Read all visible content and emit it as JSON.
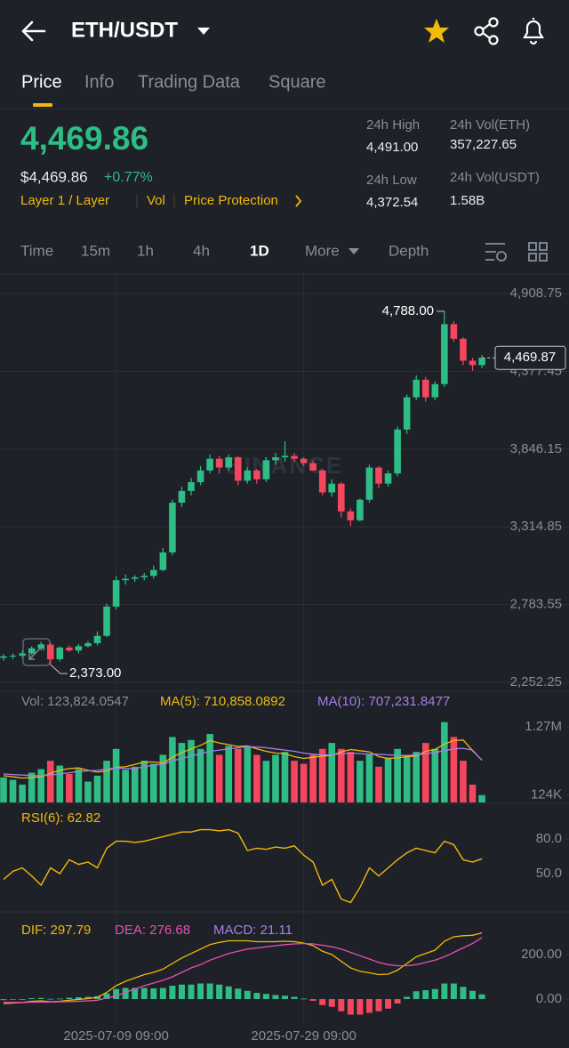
{
  "header": {
    "title": "ETH/USDT"
  },
  "tabs": [
    "Price",
    "Info",
    "Trading Data",
    "Square"
  ],
  "ticker": {
    "price": "4,469.86",
    "usd_price": "$4,469.86",
    "change": "+0.77%",
    "tags": [
      "Layer 1 / Layer",
      "Vol",
      "Price Protection"
    ],
    "stats": [
      {
        "label": "24h High",
        "value": "4,491.00"
      },
      {
        "label": "24h Vol(ETH)",
        "value": "357,227.65"
      },
      {
        "label": "24h Low",
        "value": "4,372.54"
      },
      {
        "label": "24h Vol(USDT)",
        "value": "1.58B"
      }
    ]
  },
  "intervals": [
    "Time",
    "15m",
    "1h",
    "4h",
    "1D",
    "More",
    "Depth"
  ],
  "watermark": "BINANCE",
  "chart_data": [
    {
      "type": "candlestick",
      "up_color": "#2ebd85",
      "down_color": "#f6465d",
      "categories": [
        null,
        null,
        null,
        null,
        null,
        null,
        null,
        null,
        null,
        null,
        null,
        null,
        "2025-07-09 09:00",
        null,
        null,
        null,
        null,
        null,
        null,
        null,
        null,
        null,
        null,
        null,
        null,
        null,
        null,
        null,
        null,
        null,
        null,
        null,
        "2025-07-29 09:00",
        null,
        null,
        null,
        null,
        null,
        null,
        null,
        null,
        null,
        null,
        null,
        null,
        null,
        null,
        null,
        null,
        null,
        null,
        null
      ],
      "open": [
        2420,
        2430,
        2435,
        2450,
        2485,
        2510,
        2410,
        2490,
        2470,
        2500,
        2520,
        2570,
        2770,
        2950,
        2960,
        2970,
        2980,
        3020,
        3140,
        3480,
        3560,
        3620,
        3700,
        3780,
        3720,
        3790,
        3630,
        3700,
        3640,
        3770,
        3790,
        3800,
        3780,
        3750,
        3700,
        3550,
        3610,
        3420,
        3360,
        3500,
        3720,
        3610,
        3680,
        3980,
        4200,
        4320,
        4200,
        4290,
        4700,
        4600,
        4450,
        4420
      ],
      "high": [
        2445,
        2450,
        2470,
        2500,
        2530,
        2525,
        2500,
        2505,
        2515,
        2535,
        2600,
        2790,
        2980,
        2990,
        2985,
        3000,
        3050,
        3170,
        3500,
        3590,
        3650,
        3730,
        3810,
        3800,
        3810,
        3800,
        3720,
        3710,
        3790,
        3820,
        3900,
        3820,
        3790,
        3770,
        3710,
        3640,
        3620,
        3440,
        3510,
        3740,
        3730,
        3700,
        4000,
        4220,
        4350,
        4340,
        4310,
        4788,
        4720,
        4610,
        4470,
        4490
      ],
      "low": [
        2400,
        2410,
        2420,
        2440,
        2470,
        2373,
        2395,
        2460,
        2450,
        2490,
        2505,
        2560,
        2750,
        2920,
        2940,
        2950,
        2960,
        3010,
        3120,
        3450,
        3530,
        3600,
        3680,
        3680,
        3700,
        3600,
        3610,
        3610,
        3620,
        3740,
        3760,
        3760,
        3730,
        3700,
        3530,
        3520,
        3380,
        3320,
        3350,
        3480,
        3580,
        3590,
        3660,
        3950,
        4180,
        4170,
        4180,
        4270,
        4580,
        4420,
        4380,
        4400
      ],
      "close": [
        2430,
        2435,
        2450,
        2485,
        2510,
        2410,
        2490,
        2470,
        2500,
        2520,
        2570,
        2770,
        2950,
        2960,
        2970,
        2980,
        3020,
        3140,
        3480,
        3560,
        3620,
        3700,
        3780,
        3720,
        3790,
        3630,
        3700,
        3640,
        3770,
        3790,
        3800,
        3780,
        3750,
        3700,
        3550,
        3610,
        3420,
        3360,
        3500,
        3720,
        3610,
        3680,
        3980,
        4200,
        4320,
        4200,
        4290,
        4700,
        4600,
        4450,
        4420,
        4469.87
      ],
      "ylim": [
        2191.46,
        5030.33
      ],
      "yticks": [
        {
          "value": 2252.25,
          "label": "2,252.25"
        },
        {
          "value": 2783.55,
          "label": "2,783.55"
        },
        {
          "value": 3314.85,
          "label": "3,314.85"
        },
        {
          "value": 3846.15,
          "label": "3,846.15"
        },
        {
          "value": 4377.45,
          "label": "4,377.45"
        },
        {
          "value": 4908.75,
          "label": "4,908.75"
        }
      ],
      "annotations": {
        "high": {
          "value": 4788,
          "label": "4,788.00"
        },
        "low": {
          "value": 2373,
          "label": "2,373.00"
        },
        "last": {
          "value": 4469.87,
          "label": "4,469.87"
        }
      }
    },
    {
      "type": "bar",
      "label": "Vol: 123,824.0547",
      "values": [
        420000,
        380000,
        300000,
        500000,
        560000,
        700000,
        620000,
        480000,
        560000,
        350000,
        450000,
        700000,
        900000,
        550000,
        600000,
        700000,
        650000,
        800000,
        1100000,
        1000000,
        1050000,
        900000,
        1150000,
        800000,
        950000,
        900000,
        950000,
        800000,
        700000,
        800000,
        850000,
        700000,
        650000,
        800000,
        900000,
        1000000,
        900000,
        850000,
        700000,
        800000,
        600000,
        750000,
        900000,
        800000,
        850000,
        1000000,
        900000,
        1350000,
        1100000,
        700000,
        300000,
        123824.0547
      ],
      "series": [
        {
          "label": "MA(5): 710,858.0892",
          "color": "#f0b90b",
          "values": [
            450000,
            430000,
            410000,
            420000,
            430000,
            490000,
            540000,
            570000,
            580000,
            540000,
            510000,
            530000,
            590000,
            600000,
            640000,
            680000,
            680000,
            660000,
            760000,
            840000,
            900000,
            960000,
            1040000,
            1000000,
            970000,
            940000,
            950000,
            900000,
            860000,
            830000,
            820000,
            770000,
            740000,
            760000,
            780000,
            790000,
            850000,
            890000,
            870000,
            850000,
            770000,
            740000,
            750000,
            770000,
            780000,
            860000,
            890000,
            980000,
            1040000,
            1050000,
            870000,
            710858.0892
          ]
        },
        {
          "label": "MA(10): 707,231.8477",
          "color": "#a77ee8",
          "values": [
            480000,
            470000,
            460000,
            455000,
            450000,
            460000,
            480000,
            500000,
            520000,
            530000,
            540000,
            560000,
            580000,
            570000,
            570000,
            600000,
            630000,
            640000,
            700000,
            740000,
            780000,
            820000,
            860000,
            880000,
            900000,
            920000,
            940000,
            930000,
            920000,
            900000,
            880000,
            860000,
            830000,
            810000,
            800000,
            800000,
            820000,
            830000,
            820000,
            810000,
            810000,
            800000,
            790000,
            790000,
            800000,
            820000,
            840000,
            870000,
            900000,
            910000,
            880000,
            707231.8477
          ]
        }
      ],
      "ylim": [
        0,
        1450000
      ],
      "yticks": [
        {
          "value": 124000,
          "label": "124K"
        },
        {
          "value": 1270000,
          "label": "1.27M"
        }
      ]
    },
    {
      "type": "line",
      "label": "RSI(6): 62.82",
      "color": "#f0b90b",
      "values": [
        45,
        52,
        55,
        48,
        40,
        55,
        50,
        62,
        58,
        60,
        55,
        72,
        78,
        78,
        77,
        78,
        80,
        82,
        84,
        86,
        86,
        88,
        88,
        87,
        88,
        85,
        70,
        72,
        71,
        73,
        72,
        74,
        66,
        60,
        40,
        45,
        28,
        25,
        38,
        55,
        48,
        55,
        62,
        68,
        72,
        70,
        68,
        78,
        75,
        62,
        60,
        62.82
      ],
      "ylim": [
        16.9,
        109.2
      ],
      "yticks": [
        {
          "value": 80,
          "label": "80.0"
        },
        {
          "value": 50,
          "label": "50.0"
        }
      ]
    },
    {
      "type": "macd",
      "series": [
        {
          "label": "DIF: 297.79",
          "color": "#f0b90b",
          "values": [
            -20,
            -18,
            -15,
            -10,
            -8,
            -12,
            -10,
            -5,
            -2,
            2,
            8,
            30,
            60,
            80,
            95,
            110,
            120,
            135,
            160,
            185,
            205,
            225,
            245,
            255,
            262,
            262,
            262,
            258,
            258,
            258,
            260,
            258,
            252,
            240,
            215,
            200,
            170,
            140,
            125,
            118,
            110,
            112,
            130,
            160,
            190,
            205,
            220,
            260,
            280,
            285,
            287,
            297.79
          ]
        },
        {
          "label": "DEA: 276.68",
          "color": "#e84fb5",
          "values": [
            -15,
            -15,
            -15,
            -14,
            -13,
            -13,
            -12,
            -11,
            -10,
            -8,
            -5,
            5,
            15,
            30,
            45,
            60,
            72,
            85,
            100,
            120,
            140,
            155,
            175,
            190,
            205,
            215,
            225,
            230,
            235,
            240,
            245,
            248,
            250,
            248,
            242,
            235,
            225,
            210,
            195,
            180,
            165,
            155,
            150,
            150,
            155,
            165,
            175,
            190,
            210,
            230,
            250,
            276.68
          ]
        }
      ],
      "histogram": {
        "label": "MACD: 21.11",
        "color": "#a77ee8",
        "values": [
          -5,
          -3,
          0,
          4,
          5,
          1,
          2,
          6,
          8,
          10,
          13,
          25,
          45,
          50,
          50,
          50,
          48,
          50,
          60,
          65,
          65,
          70,
          70,
          65,
          57,
          47,
          37,
          28,
          23,
          18,
          15,
          10,
          2,
          -8,
          -27,
          -35,
          -55,
          -70,
          -70,
          -62,
          -55,
          -43,
          -20,
          10,
          35,
          40,
          45,
          70,
          70,
          55,
          37,
          21.11
        ]
      },
      "ylim": [
        -108,
        372
      ],
      "yticks": [
        {
          "value": 0,
          "label": "0.00"
        },
        {
          "value": 200,
          "label": "200.00"
        }
      ]
    }
  ]
}
